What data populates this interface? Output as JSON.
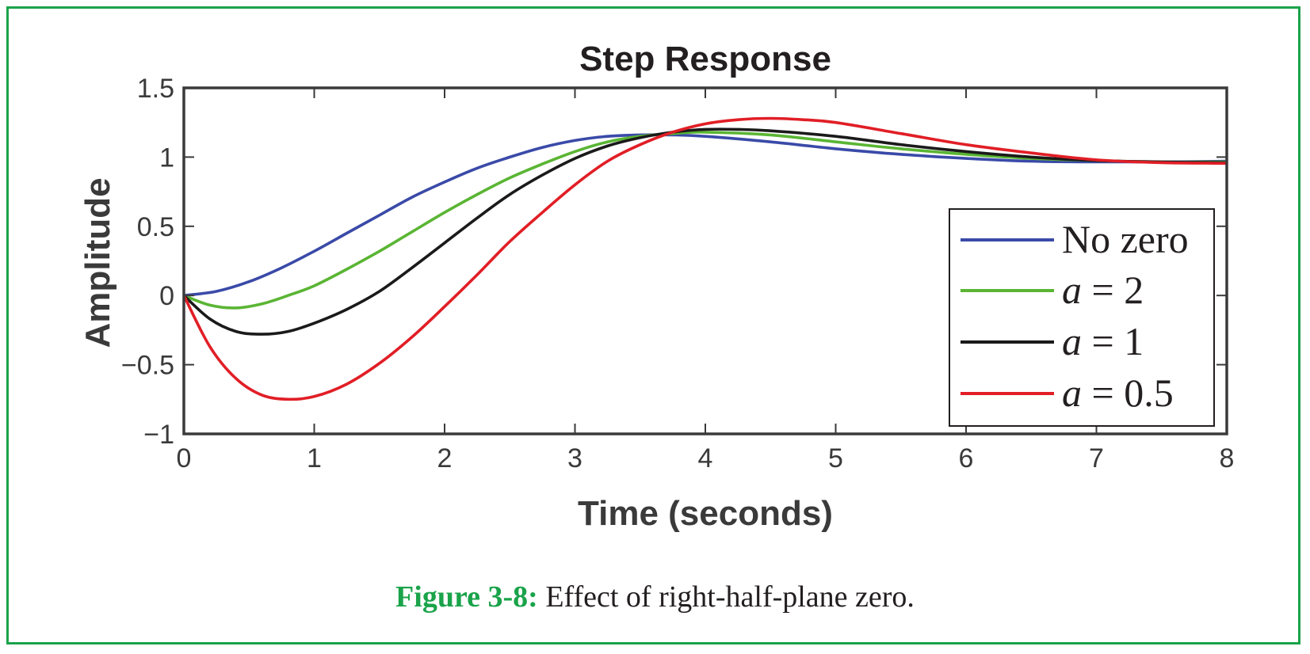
{
  "caption": {
    "label": "Figure 3-8:",
    "text": " Effect of right-half-plane zero."
  },
  "colors": {
    "frame": "#1aa34a",
    "axis": "#3a3a3a",
    "no_zero": "#3a4aa8",
    "a2": "#5ab534",
    "a1": "#1a1a1a",
    "a05": "#e11e26"
  },
  "chart_data": {
    "type": "line",
    "title": "Step Response",
    "xlabel": "Time (seconds)",
    "ylabel": "Amplitude",
    "xlim": [
      0,
      8
    ],
    "ylim": [
      -1,
      1.5
    ],
    "xticks": [
      0,
      1,
      2,
      3,
      4,
      5,
      6,
      7,
      8
    ],
    "yticks": [
      1.5,
      1,
      0.5,
      0,
      -0.5,
      -1
    ],
    "ytick_labels": [
      "1.5",
      "1",
      "0.5",
      "0",
      "−0.5",
      "−1"
    ],
    "grid": false,
    "legend_position": "lower-right",
    "series": [
      {
        "name": "No zero",
        "legend_var": "",
        "legend_rest": "No zero",
        "color": "#3a4aa8",
        "x": [
          0,
          0.25,
          0.5,
          0.75,
          1.0,
          1.25,
          1.5,
          1.75,
          2.0,
          2.25,
          2.5,
          2.75,
          3.0,
          3.25,
          3.5,
          3.75,
          4.0,
          4.5,
          5.0,
          5.5,
          6.0,
          6.5,
          7.0,
          7.5,
          8.0
        ],
        "y": [
          0.0,
          0.03,
          0.1,
          0.2,
          0.32,
          0.45,
          0.58,
          0.71,
          0.82,
          0.92,
          1.0,
          1.07,
          1.12,
          1.15,
          1.16,
          1.16,
          1.15,
          1.11,
          1.06,
          1.02,
          0.99,
          0.97,
          0.965,
          0.965,
          0.97
        ]
      },
      {
        "name": "a = 2",
        "legend_var": "a",
        "legend_rest": " = 2",
        "color": "#5ab534",
        "x": [
          0,
          0.2,
          0.4,
          0.6,
          0.8,
          1.0,
          1.25,
          1.5,
          1.75,
          2.0,
          2.25,
          2.5,
          2.75,
          3.0,
          3.25,
          3.5,
          3.75,
          4.0,
          4.5,
          5.0,
          5.5,
          6.0,
          6.5,
          7.0,
          7.5,
          8.0
        ],
        "y": [
          0.0,
          -0.07,
          -0.09,
          -0.06,
          0.0,
          0.07,
          0.19,
          0.32,
          0.46,
          0.6,
          0.73,
          0.85,
          0.95,
          1.04,
          1.11,
          1.15,
          1.17,
          1.18,
          1.16,
          1.11,
          1.06,
          1.02,
          0.99,
          0.975,
          0.965,
          0.965
        ]
      },
      {
        "name": "a = 1",
        "legend_var": "a",
        "legend_rest": " = 1",
        "color": "#1a1a1a",
        "x": [
          0,
          0.2,
          0.4,
          0.6,
          0.8,
          1.0,
          1.25,
          1.5,
          1.75,
          2.0,
          2.25,
          2.5,
          2.75,
          3.0,
          3.25,
          3.5,
          3.75,
          4.0,
          4.25,
          4.5,
          5.0,
          5.5,
          6.0,
          6.5,
          7.0,
          7.5,
          8.0
        ],
        "y": [
          0.0,
          -0.17,
          -0.26,
          -0.28,
          -0.26,
          -0.2,
          -0.1,
          0.03,
          0.2,
          0.38,
          0.56,
          0.73,
          0.87,
          0.99,
          1.08,
          1.14,
          1.18,
          1.2,
          1.2,
          1.19,
          1.15,
          1.09,
          1.04,
          1.0,
          0.975,
          0.965,
          0.96
        ]
      },
      {
        "name": "a = 0.5",
        "legend_var": "a",
        "legend_rest": " = 0.5",
        "color": "#e11e26",
        "x": [
          0,
          0.2,
          0.4,
          0.6,
          0.8,
          1.0,
          1.25,
          1.5,
          1.75,
          2.0,
          2.25,
          2.5,
          2.75,
          3.0,
          3.25,
          3.5,
          3.75,
          4.0,
          4.25,
          4.5,
          4.75,
          5.0,
          5.5,
          6.0,
          6.5,
          7.0,
          7.5,
          8.0
        ],
        "y": [
          0.0,
          -0.37,
          -0.6,
          -0.72,
          -0.75,
          -0.73,
          -0.64,
          -0.49,
          -0.3,
          -0.08,
          0.15,
          0.39,
          0.6,
          0.8,
          0.97,
          1.09,
          1.18,
          1.24,
          1.27,
          1.28,
          1.27,
          1.25,
          1.17,
          1.09,
          1.03,
          0.98,
          0.96,
          0.955
        ]
      }
    ]
  }
}
